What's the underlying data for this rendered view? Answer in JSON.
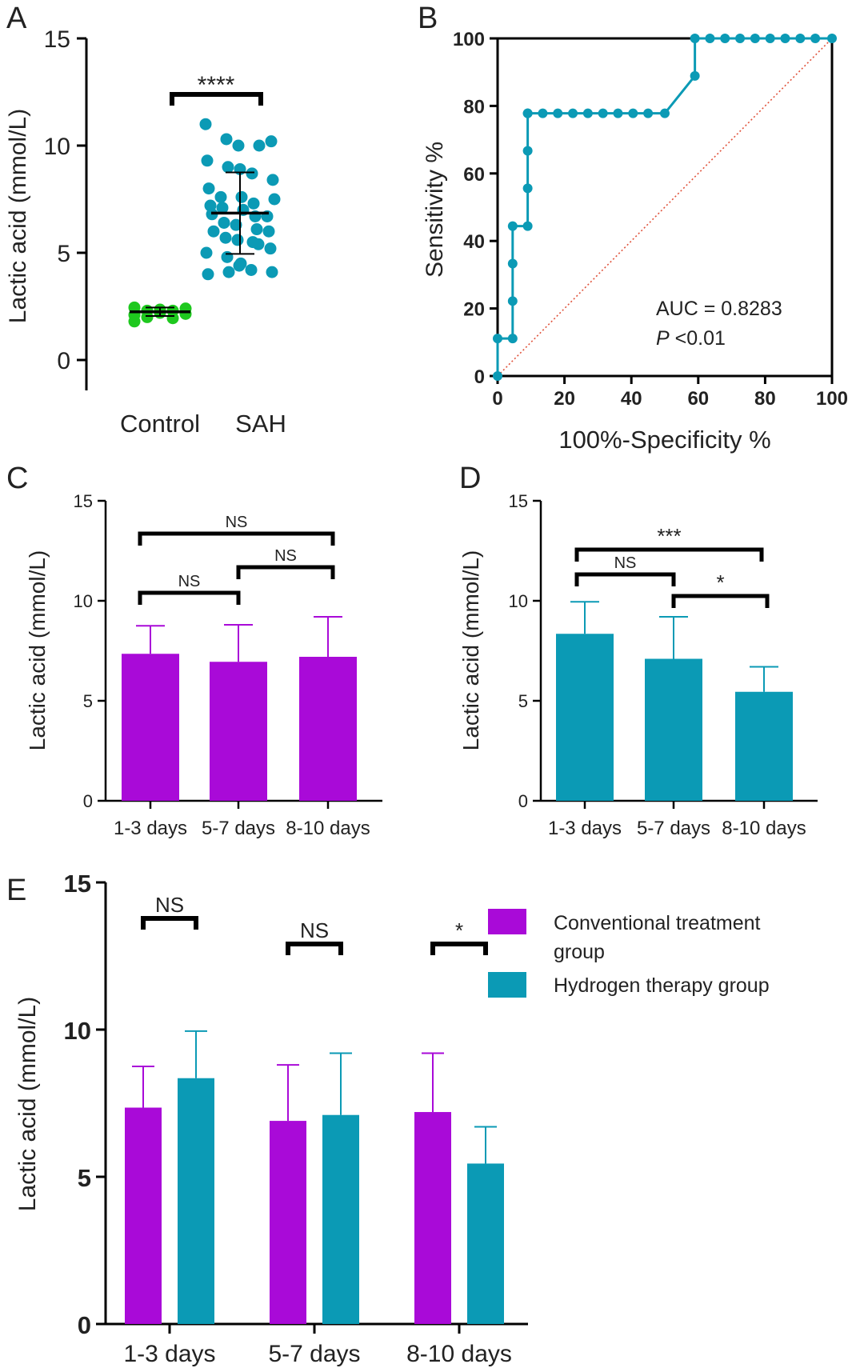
{
  "colors": {
    "control_green": "#1ec81e",
    "teal": "#0b9ab5",
    "purple": "#a90ad8",
    "roc_diagonal": "#e0533c",
    "axis": "#000000"
  },
  "chart_data": [
    {
      "panel": "A",
      "type": "scatter",
      "ylabel": "Lactic acid (mmol/L)",
      "ylim": [
        0,
        15
      ],
      "yticks": [
        "0",
        "5",
        "10",
        "15"
      ],
      "categories": [
        "Control",
        "SAH"
      ],
      "series": [
        {
          "category": "Control",
          "color": "#1ec81e",
          "mean": 2.25,
          "sd": 0.2,
          "values": [
            2.1,
            2.3,
            2.35,
            2.3,
            2.4,
            2.45,
            2.0,
            2.2,
            1.95,
            2.15,
            1.8
          ]
        },
        {
          "category": "SAH",
          "color": "#0b9ab5",
          "mean": 6.85,
          "sd": 1.9,
          "values": [
            11.0,
            10.3,
            10.0,
            10.0,
            10.2,
            9.3,
            9.0,
            8.9,
            8.7,
            8.4,
            8.0,
            7.6,
            7.6,
            7.3,
            7.5,
            7.2,
            7.1,
            7.0,
            6.7,
            6.7,
            6.8,
            6.4,
            6.3,
            6.1,
            6.0,
            6.0,
            5.7,
            5.6,
            5.4,
            5.2,
            5.0,
            4.8,
            4.4,
            4.2,
            4.1,
            4.0,
            4.1,
            4.5,
            5.5
          ]
        }
      ],
      "annotations": [
        {
          "from": "Control",
          "to": "SAH",
          "text": "****"
        }
      ]
    },
    {
      "panel": "B",
      "type": "line",
      "xlabel": "100%-Specificity %",
      "ylabel": "Sensitivity %",
      "xlim": [
        0,
        100
      ],
      "ylim": [
        0,
        100
      ],
      "xticks": [
        "0",
        "20",
        "40",
        "60",
        "80",
        "100"
      ],
      "yticks": [
        "0",
        "20",
        "40",
        "60",
        "80",
        "100"
      ],
      "series": [
        {
          "name": "ROC",
          "color": "#0b9ab5",
          "x": [
            0,
            0,
            4.5,
            4.5,
            4.5,
            4.5,
            9,
            9,
            9,
            9,
            9,
            13.5,
            18,
            22.5,
            27,
            31.5,
            36,
            40.5,
            45,
            50,
            59,
            59,
            63.5,
            68,
            72.5,
            77,
            81.5,
            86,
            90.5,
            95,
            100
          ],
          "y": [
            0,
            11.1,
            11.1,
            22.2,
            33.3,
            44.4,
            44.4,
            55.6,
            66.7,
            77.8,
            77.8,
            77.8,
            77.8,
            77.8,
            77.8,
            77.8,
            77.8,
            77.8,
            77.8,
            77.8,
            88.9,
            100,
            100,
            100,
            100,
            100,
            100,
            100,
            100,
            100,
            100
          ]
        },
        {
          "name": "",
          "color": "#e0533c",
          "x": [
            0,
            100
          ],
          "y": [
            0,
            100
          ],
          "style": "dotted"
        }
      ],
      "annotations": [
        {
          "text": "AUC = 0.8283"
        },
        {
          "p_label": "P",
          "text": " <0.01"
        }
      ]
    },
    {
      "panel": "C",
      "type": "bar",
      "ylabel": "Lactic acid (mmol/L)",
      "ylim": [
        0,
        15
      ],
      "yticks": [
        "0",
        "5",
        "10",
        "15"
      ],
      "categories": [
        "1-3 days",
        "5-7 days",
        "8-10 days"
      ],
      "series": [
        {
          "color": "#a90ad8",
          "values": [
            7.35,
            6.95,
            7.2
          ],
          "errors": [
            1.4,
            1.85,
            2.0
          ]
        }
      ],
      "annotations": [
        {
          "from": 0,
          "to": 1,
          "text": "NS"
        },
        {
          "from": 1,
          "to": 2,
          "text": "NS"
        },
        {
          "from": 0,
          "to": 2,
          "text": "NS"
        }
      ]
    },
    {
      "panel": "D",
      "type": "bar",
      "ylabel": "Lactic acid (mmol/L)",
      "ylim": [
        0,
        15
      ],
      "yticks": [
        "0",
        "5",
        "10",
        "15"
      ],
      "categories": [
        "1-3 days",
        "5-7 days",
        "8-10 days"
      ],
      "series": [
        {
          "color": "#0b9ab5",
          "values": [
            8.35,
            7.1,
            5.45
          ],
          "errors": [
            1.6,
            2.1,
            1.25
          ]
        }
      ],
      "annotations": [
        {
          "from": 0,
          "to": 1,
          "text": "NS"
        },
        {
          "from": 1,
          "to": 2,
          "text": "*"
        },
        {
          "from": 0,
          "to": 2,
          "text": "***"
        }
      ]
    },
    {
      "panel": "E",
      "type": "bar",
      "ylabel": "Lactic acid (mmol/L)",
      "ylim": [
        0,
        15
      ],
      "yticks": [
        "0",
        "5",
        "10",
        "15"
      ],
      "categories": [
        "1-3 days",
        "5-7 days",
        "8-10 days"
      ],
      "series": [
        {
          "name": "Conventional treatment group",
          "color": "#a90ad8",
          "values": [
            7.35,
            6.9,
            7.2
          ],
          "errors": [
            1.4,
            1.9,
            2.0
          ]
        },
        {
          "name": "Hydrogen therapy group",
          "color": "#0b9ab5",
          "values": [
            8.35,
            7.1,
            5.45
          ],
          "errors": [
            1.6,
            2.1,
            1.25
          ]
        }
      ],
      "legend": {
        "position": "top-right",
        "lines": [
          [
            "Conventional treatment",
            "group"
          ],
          [
            "Hydrogen therapy group"
          ]
        ]
      },
      "annotations": [
        {
          "category": 0,
          "text": "NS"
        },
        {
          "category": 1,
          "text": "NS"
        },
        {
          "category": 2,
          "text": "*"
        }
      ]
    }
  ]
}
